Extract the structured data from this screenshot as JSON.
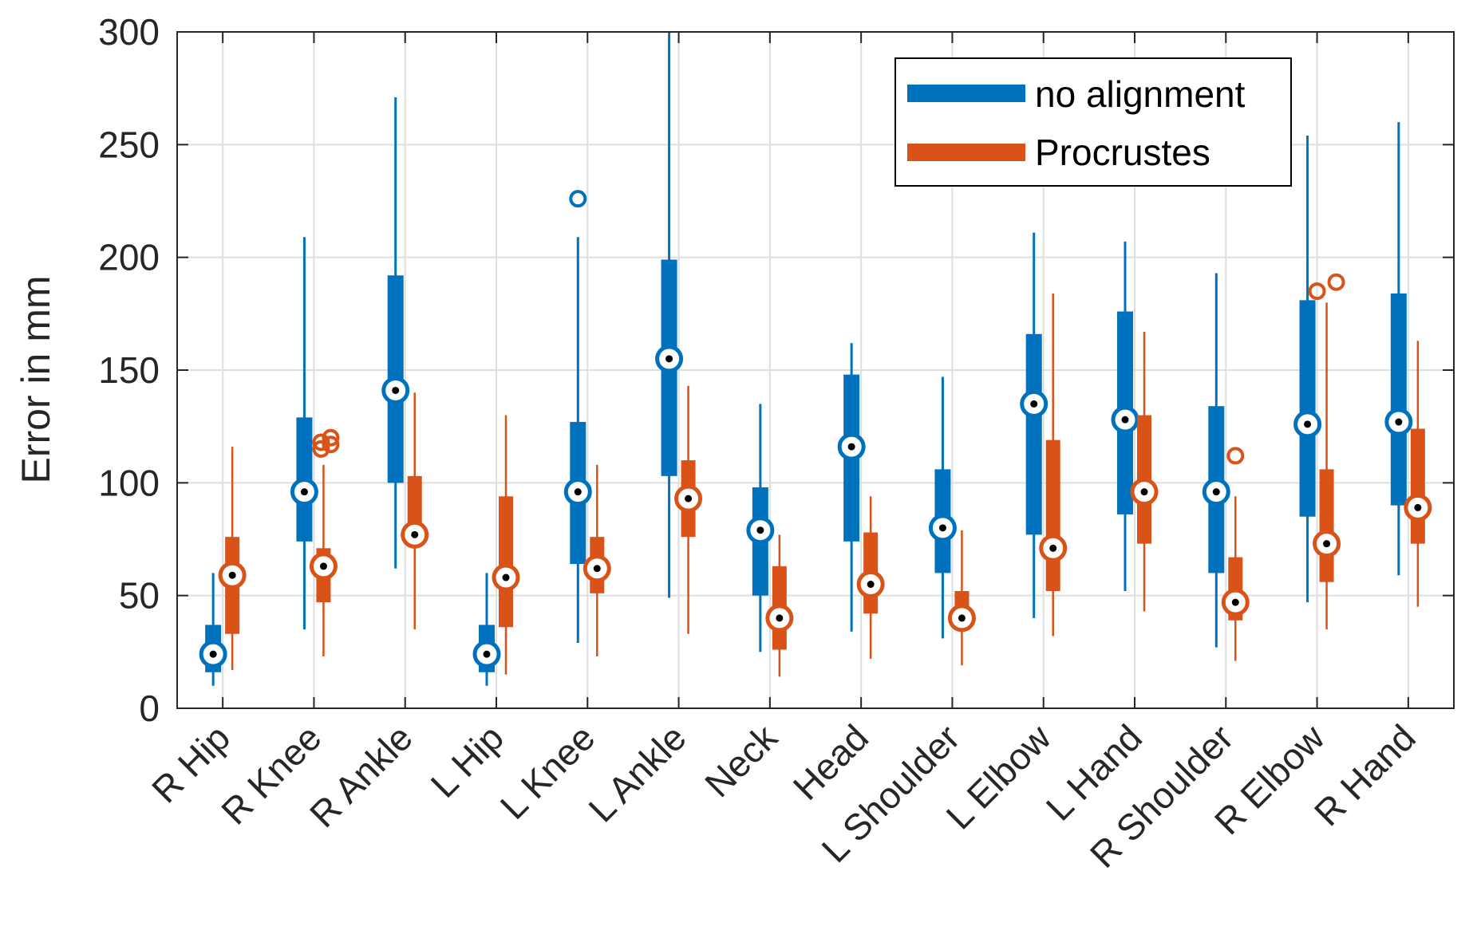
{
  "chart_data": {
    "type": "box",
    "ylabel": "Error in mm",
    "ylim": [
      0,
      300
    ],
    "yticks": [
      0,
      50,
      100,
      150,
      200,
      250,
      300
    ],
    "grid": true,
    "legend_position": "top-right",
    "categories": [
      "R Hip",
      "R Knee",
      "R Ankle",
      "L Hip",
      "L Knee",
      "L Ankle",
      "Neck",
      "Head",
      "L Shoulder",
      "L Elbow",
      "L Hand",
      "R Shoulder",
      "R Elbow",
      "R Hand"
    ],
    "series": [
      {
        "name": "no alignment",
        "color": "#0072BD",
        "boxes": [
          {
            "min": 10,
            "q1": 16,
            "median": 24,
            "q3": 37,
            "max": 60,
            "outliers": []
          },
          {
            "min": 35,
            "q1": 74,
            "median": 96,
            "q3": 129,
            "max": 209,
            "outliers": []
          },
          {
            "min": 62,
            "q1": 100,
            "median": 141,
            "q3": 192,
            "max": 271,
            "outliers": []
          },
          {
            "min": 10,
            "q1": 16,
            "median": 24,
            "q3": 37,
            "max": 60,
            "outliers": []
          },
          {
            "min": 29,
            "q1": 64,
            "median": 96,
            "q3": 127,
            "max": 209,
            "outliers": [
              226
            ]
          },
          {
            "min": 49,
            "q1": 103,
            "median": 155,
            "q3": 199,
            "max": 300,
            "outliers": []
          },
          {
            "min": 25,
            "q1": 50,
            "median": 79,
            "q3": 98,
            "max": 135,
            "outliers": []
          },
          {
            "min": 34,
            "q1": 74,
            "median": 116,
            "q3": 148,
            "max": 162,
            "outliers": []
          },
          {
            "min": 31,
            "q1": 60,
            "median": 80,
            "q3": 106,
            "max": 147,
            "outliers": []
          },
          {
            "min": 40,
            "q1": 77,
            "median": 135,
            "q3": 166,
            "max": 211,
            "outliers": []
          },
          {
            "min": 52,
            "q1": 86,
            "median": 128,
            "q3": 176,
            "max": 207,
            "outliers": []
          },
          {
            "min": 27,
            "q1": 60,
            "median": 96,
            "q3": 134,
            "max": 193,
            "outliers": []
          },
          {
            "min": 47,
            "q1": 85,
            "median": 126,
            "q3": 181,
            "max": 254,
            "outliers": []
          },
          {
            "min": 59,
            "q1": 90,
            "median": 127,
            "q3": 184,
            "max": 260,
            "outliers": []
          }
        ]
      },
      {
        "name": "Procrustes",
        "color": "#D95319",
        "boxes": [
          {
            "min": 17,
            "q1": 33,
            "median": 59,
            "q3": 76,
            "max": 116,
            "outliers": []
          },
          {
            "min": 23,
            "q1": 47,
            "median": 63,
            "q3": 71,
            "max": 108,
            "outliers": [
              115,
              117,
              118,
              120
            ]
          },
          {
            "min": 35,
            "q1": 74,
            "median": 77,
            "q3": 103,
            "max": 140,
            "outliers": []
          },
          {
            "min": 15,
            "q1": 36,
            "median": 58,
            "q3": 94,
            "max": 130,
            "outliers": []
          },
          {
            "min": 23,
            "q1": 51,
            "median": 62,
            "q3": 76,
            "max": 108,
            "outliers": []
          },
          {
            "min": 33,
            "q1": 76,
            "median": 93,
            "q3": 110,
            "max": 143,
            "outliers": []
          },
          {
            "min": 14,
            "q1": 26,
            "median": 40,
            "q3": 63,
            "max": 77,
            "outliers": []
          },
          {
            "min": 22,
            "q1": 42,
            "median": 55,
            "q3": 78,
            "max": 94,
            "outliers": []
          },
          {
            "min": 19,
            "q1": 35,
            "median": 40,
            "q3": 52,
            "max": 79,
            "outliers": []
          },
          {
            "min": 32,
            "q1": 52,
            "median": 71,
            "q3": 119,
            "max": 184,
            "outliers": []
          },
          {
            "min": 43,
            "q1": 73,
            "median": 96,
            "q3": 130,
            "max": 167,
            "outliers": []
          },
          {
            "min": 21,
            "q1": 39,
            "median": 47,
            "q3": 67,
            "max": 94,
            "outliers": [
              112
            ]
          },
          {
            "min": 35,
            "q1": 56,
            "median": 73,
            "q3": 106,
            "max": 180,
            "outliers": [
              185,
              189
            ]
          },
          {
            "min": 45,
            "q1": 73,
            "median": 89,
            "q3": 124,
            "max": 163,
            "outliers": []
          }
        ]
      }
    ]
  }
}
